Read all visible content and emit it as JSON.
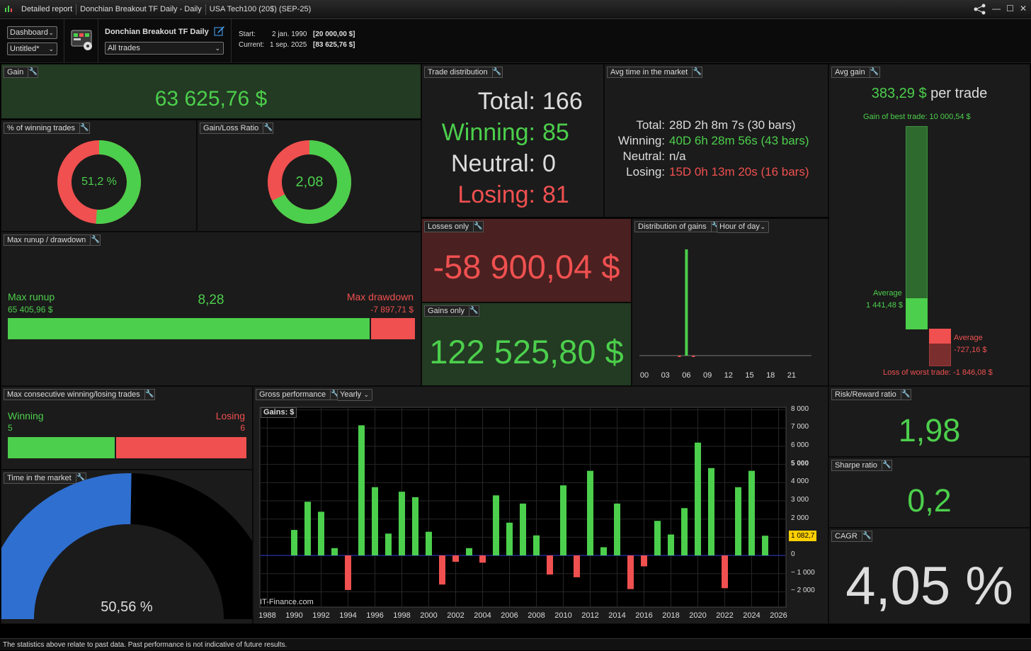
{
  "titlebar": {
    "tabs": [
      "Detailed report",
      "Donchian Breakout TF Daily - Daily",
      "USA Tech100 (20$) (SEP-25)"
    ]
  },
  "toolbar": {
    "view_select": "Dashboard",
    "layout_select": "Untitled*",
    "strategy_name": "Donchian Breakout TF Daily",
    "trades_select": "All trades",
    "start_label": "Start:",
    "start_date": "2 jan. 1990",
    "start_value": "[20 000,00 $]",
    "current_label": "Current:",
    "current_date": "1 sep. 2025",
    "current_value": "[83 625,76 $]"
  },
  "gain": {
    "title": "Gain",
    "value": "63 625,76 $"
  },
  "winning_pct": {
    "title": "% of winning trades",
    "value": "51,2 %",
    "fraction": 0.512
  },
  "gain_loss_ratio": {
    "title": "Gain/Loss Ratio",
    "value": "2,08",
    "fraction": 0.675
  },
  "trade_distribution": {
    "title": "Trade distribution",
    "rows": [
      {
        "label": "Total:",
        "value": "166"
      },
      {
        "label": "Winning:",
        "value": "85"
      },
      {
        "label": "Neutral:",
        "value": "0"
      },
      {
        "label": "Losing:",
        "value": "81"
      }
    ]
  },
  "avg_time": {
    "title": "Avg time in the market",
    "rows": [
      {
        "label": "Total:",
        "value": "28D 2h 8m 7s (30 bars)"
      },
      {
        "label": "Winning:",
        "value": "40D 6h 28m 56s (43 bars)"
      },
      {
        "label": "Neutral:",
        "value": "n/a"
      },
      {
        "label": "Losing:",
        "value": "15D 0h 13m 20s (16 bars)"
      }
    ]
  },
  "avg_gain": {
    "title": "Avg gain",
    "value": "383,29 $",
    "suffix": "per trade",
    "best_trade": "Gain of best trade: 10 000,54 $",
    "avg_label": "Average",
    "avg_gain_value": "1 441,48 $",
    "avg_loss_label": "Average",
    "avg_loss_value": "-727,16 $",
    "worst_trade": "Loss of worst trade: -1 846,08 $"
  },
  "runup": {
    "title": "Max runup / drawdown",
    "runup_label": "Max runup",
    "runup_value": "65 405,96 $",
    "ratio": "8,28",
    "drawdown_label": "Max drawdown",
    "drawdown_value": "-7 897,71 $",
    "runup_fraction": 0.892
  },
  "losses_only": {
    "title": "Losses only",
    "value": "-58 900,04 $"
  },
  "gains_only": {
    "title": "Gains only",
    "value": "122 525,80 $"
  },
  "gain_distribution": {
    "title": "Distribution of gains",
    "select": "Hour of day",
    "ticks": [
      "00",
      "03",
      "06",
      "09",
      "12",
      "15",
      "18",
      "21"
    ]
  },
  "consecutive": {
    "title": "Max consecutive winning/losing trades",
    "win_label": "Winning",
    "win_value": "5",
    "lose_label": "Losing",
    "lose_value": "6",
    "win_fraction": 0.4545
  },
  "time_in_market": {
    "title": "Time in the market",
    "value": "50,56 %",
    "fraction": 0.5056
  },
  "gross_performance": {
    "title": "Gross performance",
    "select": "Yearly",
    "legend": "Gains: $",
    "watermark": "IT-Finance.com",
    "last_value": "1 082,7"
  },
  "risk_reward": {
    "title": "Risk/Reward ratio",
    "value": "1,98"
  },
  "sharpe": {
    "title": "Sharpe ratio",
    "value": "0,2"
  },
  "cagr": {
    "title": "CAGR",
    "value": "4,05 %"
  },
  "footer": "The statistics above relate to past data. Past performance is not indicative of future results.",
  "colors": {
    "green": "#4ccf4c",
    "red": "#f05050",
    "blue": "#2f6fcf",
    "gain_bg": "#233a23",
    "loss_bg": "#4a2020"
  },
  "chart_data": [
    {
      "type": "bar",
      "title": "Gross performance",
      "legend": "Gains: $",
      "x": [
        1990,
        1991,
        1992,
        1993,
        1994,
        1995,
        1996,
        1997,
        1998,
        1999,
        2000,
        2001,
        2002,
        2003,
        2004,
        2005,
        2006,
        2007,
        2008,
        2009,
        2010,
        2011,
        2012,
        2013,
        2014,
        2015,
        2016,
        2017,
        2018,
        2019,
        2020,
        2021,
        2022,
        2023,
        2024,
        2025
      ],
      "values": [
        1400,
        2950,
        2400,
        400,
        -1900,
        7150,
        3750,
        1200,
        3500,
        3200,
        1300,
        -1600,
        -350,
        400,
        -400,
        3300,
        1800,
        2850,
        1100,
        -1050,
        3850,
        -1200,
        4650,
        450,
        2850,
        -1850,
        -600,
        1900,
        1150,
        2600,
        6200,
        4800,
        -1800,
        3750,
        4650,
        1083
      ],
      "xlim": [
        1987.5,
        2026.5
      ],
      "ylim": [
        -2800,
        8100
      ],
      "x_ticks": [
        1988,
        1990,
        1992,
        1994,
        1996,
        1998,
        2000,
        2002,
        2004,
        2006,
        2008,
        2010,
        2012,
        2014,
        2016,
        2018,
        2020,
        2022,
        2024,
        2026
      ],
      "y_ticks": [
        8000,
        7000,
        6000,
        5000,
        4000,
        3000,
        2000,
        1000,
        0,
        -1000,
        -2000
      ],
      "y_tick_labels": [
        "8 000",
        "7 000",
        "6 000",
        "5 000",
        "4 000",
        "3 000",
        "2 000",
        "",
        "0",
        "− 1 000",
        "− 2 000"
      ],
      "grid": true
    },
    {
      "type": "bar",
      "title": "Distribution of gains",
      "categories": [
        "05",
        "06",
        "07"
      ],
      "values": [
        -300,
        122525.8,
        -150
      ],
      "x_ticks": [
        "00",
        "03",
        "06",
        "09",
        "12",
        "15",
        "18",
        "21"
      ]
    }
  ]
}
